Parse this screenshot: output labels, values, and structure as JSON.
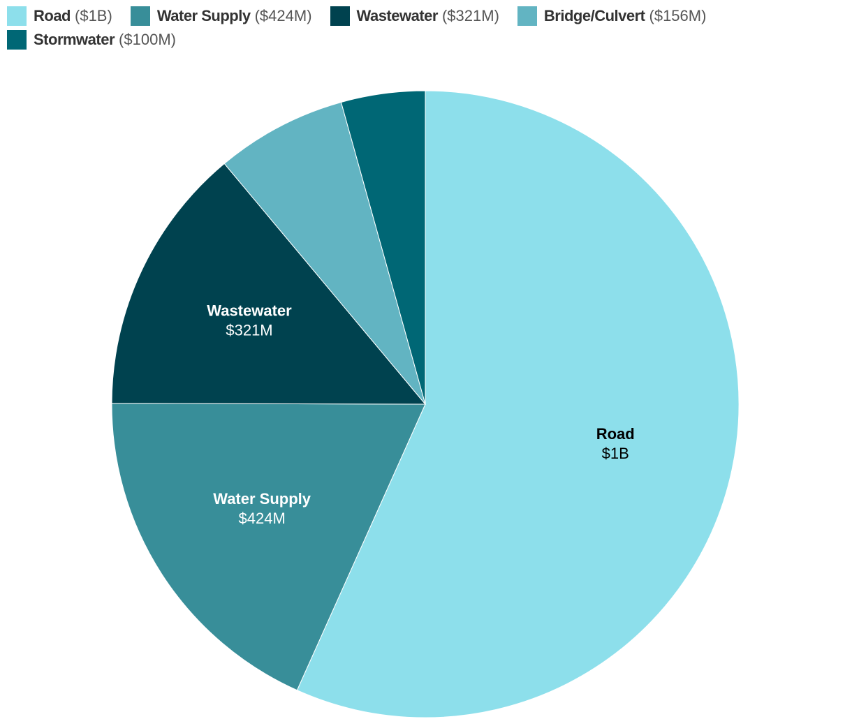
{
  "chart_data": {
    "type": "pie",
    "categories": [
      "Road",
      "Water Supply",
      "Wastewater",
      "Bridge/Culvert",
      "Stormwater"
    ],
    "values": [
      1311,
      424,
      321,
      156,
      100
    ],
    "value_labels": [
      "$1B",
      "$424M",
      "$321M",
      "$156M",
      "$100M"
    ],
    "colors": [
      "#8ddfeb",
      "#388e99",
      "#00424f",
      "#62b4c2",
      "#006775"
    ]
  }
}
